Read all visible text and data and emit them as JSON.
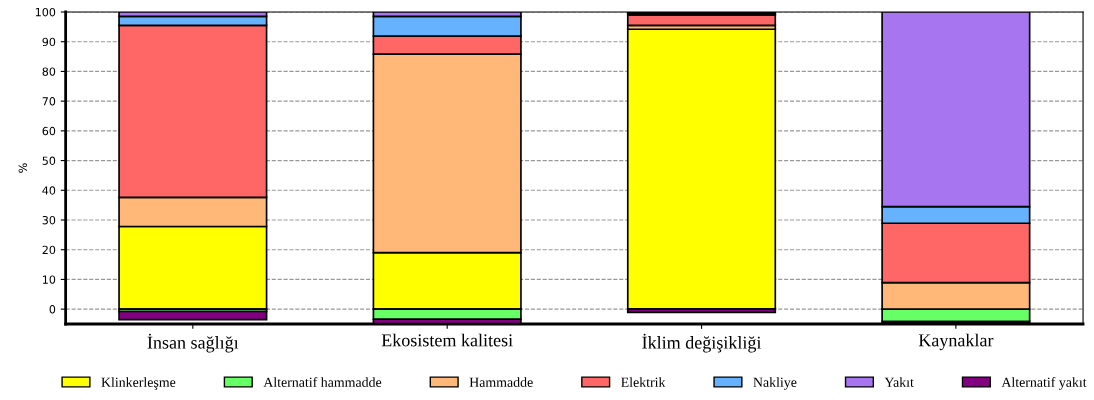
{
  "chart_data": {
    "type": "bar",
    "stacked": true,
    "ylabel": "%",
    "categories": [
      "İnsan sağlığı",
      "Ekosistem kalitesi",
      "İklim değişikliği",
      "Kaynaklar"
    ],
    "ylim": [
      -5,
      100
    ],
    "yticks": [
      0,
      10,
      20,
      30,
      40,
      50,
      60,
      70,
      80,
      90,
      100
    ],
    "grid": "y",
    "legend": "bottom",
    "series": [
      {
        "name": "Klinkerleşme",
        "color": "#ffff00",
        "values": [
          27.8,
          19,
          94.2,
          0
        ]
      },
      {
        "name": "Alternatif hammadde",
        "color": "#66ff66",
        "values": [
          -0.8,
          -3.4,
          null,
          -4.2
        ]
      },
      {
        "name": "Hammadde",
        "color": "#ffb877",
        "values": [
          9.8,
          66.8,
          1.3,
          8.9
        ]
      },
      {
        "name": "Elektrik",
        "color": "#ff6666",
        "values": [
          57.9,
          6.1,
          3.5,
          20
        ]
      },
      {
        "name": "Nakliye",
        "color": "#66b2ff",
        "values": [
          3,
          6.6,
          0.5,
          5.6
        ]
      },
      {
        "name": "Yakıt",
        "color": "#a875f0",
        "values": [
          1.5,
          1.5,
          0.5,
          65.5
        ]
      },
      {
        "name": "Alternatif yakıt",
        "color": "#800080",
        "values": [
          -2.7,
          -1.5,
          -1.1,
          -0.6
        ]
      }
    ]
  }
}
